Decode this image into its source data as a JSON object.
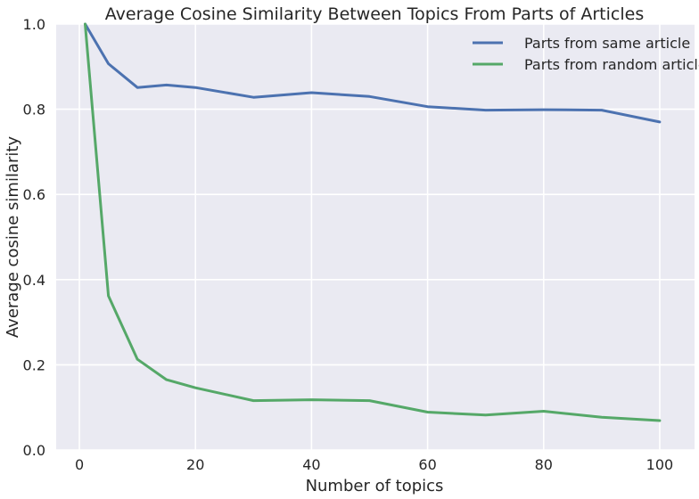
{
  "chart_data": {
    "type": "line",
    "title": "Average Cosine Similarity Between Topics From Parts of Articles",
    "xlabel": "Number of topics",
    "ylabel": "Average cosine similarity",
    "xlim": [
      -4,
      106
    ],
    "ylim": [
      0.0,
      1.0
    ],
    "xticks": [
      "0",
      "20",
      "40",
      "60",
      "80",
      "100"
    ],
    "xtick_values": [
      0,
      20,
      40,
      60,
      80,
      100
    ],
    "yticks": [
      "0.0",
      "0.2",
      "0.4",
      "0.6",
      "0.8",
      "1.0"
    ],
    "ytick_values": [
      0.0,
      0.2,
      0.4,
      0.6,
      0.8,
      1.0
    ],
    "grid": true,
    "legend_position": "top-right",
    "background": "#eaeaf2",
    "series": [
      {
        "name": "Parts from same article",
        "color": "#4c72b0",
        "x": [
          1,
          5,
          10,
          15,
          20,
          30,
          40,
          50,
          60,
          70,
          80,
          90,
          100
        ],
        "y": [
          1.0,
          0.907,
          0.851,
          0.857,
          0.851,
          0.828,
          0.839,
          0.83,
          0.806,
          0.798,
          0.799,
          0.798,
          0.77
        ]
      },
      {
        "name": "Parts from random articles",
        "color": "#55a868",
        "x": [
          1,
          5,
          10,
          15,
          20,
          30,
          40,
          50,
          60,
          70,
          80,
          90,
          100
        ],
        "y": [
          1.0,
          0.362,
          0.213,
          0.165,
          0.146,
          0.116,
          0.118,
          0.116,
          0.089,
          0.082,
          0.091,
          0.077,
          0.069
        ]
      }
    ]
  }
}
